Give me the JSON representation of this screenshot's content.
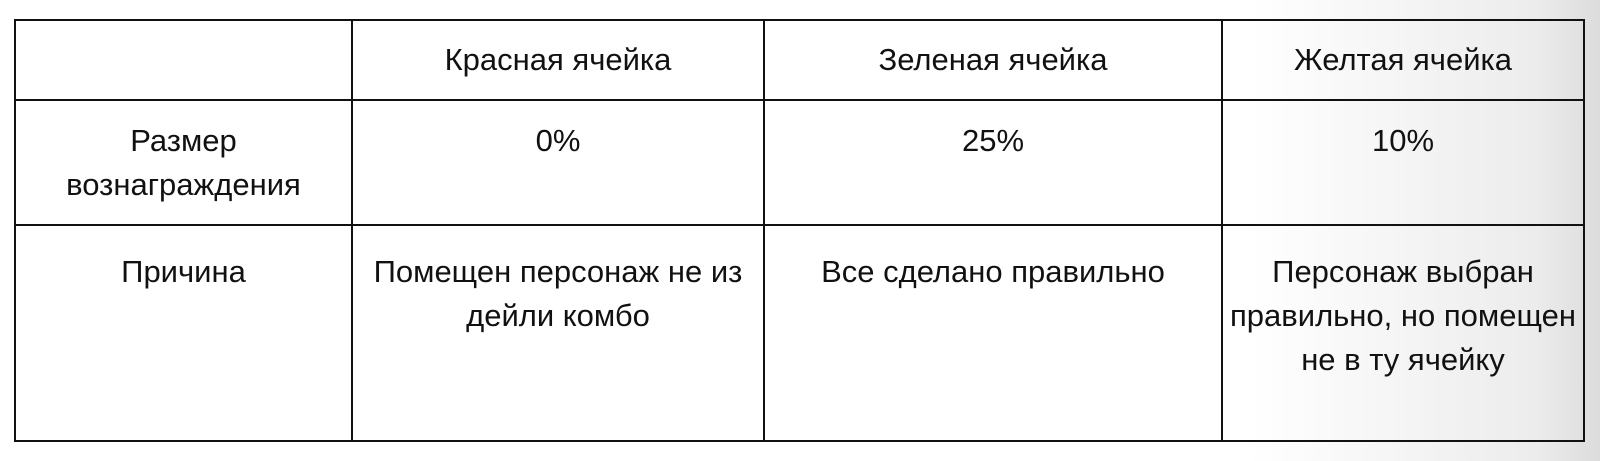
{
  "table": {
    "headers": [
      "",
      "Красная ячейка",
      "Зеленая ячейка",
      "Желтая ячейка"
    ],
    "rows": [
      {
        "label": "Размер вознаграждения",
        "cells": [
          "0%",
          "25%",
          "10%"
        ]
      },
      {
        "label": "Причина",
        "cells": [
          "Помещен персонаж не из дейли комбо",
          "Все сделано правильно",
          "Персонаж выбран правильно, но помещен не в ту ячейку"
        ]
      }
    ]
  }
}
